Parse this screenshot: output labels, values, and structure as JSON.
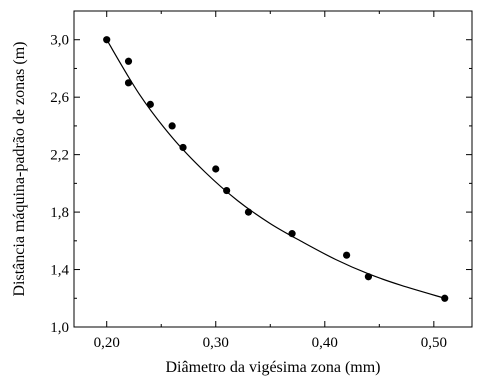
{
  "chart_data": {
    "type": "scatter",
    "xlabel": "Diâmetro da vigésima zona (mm)",
    "ylabel": "Distância máquina-padrão de zonas (m)",
    "xlim": [
      0.17,
      0.535
    ],
    "ylim": [
      1.0,
      3.2
    ],
    "xticks": [
      0.2,
      0.3,
      0.4,
      0.5
    ],
    "xtick_labels": [
      "0,20",
      "0,30",
      "0,40",
      "0,50"
    ],
    "yticks": [
      1.0,
      1.4,
      1.8,
      2.2,
      2.6,
      3.0
    ],
    "ytick_labels": [
      "1,0",
      "1,4",
      "1,8",
      "2,2",
      "2,6",
      "3,0"
    ],
    "grid": false,
    "series": [
      {
        "kind": "points",
        "x": [
          0.2,
          0.22,
          0.22,
          0.24,
          0.26,
          0.27,
          0.3,
          0.31,
          0.33,
          0.37,
          0.42,
          0.44,
          0.51
        ],
        "y": [
          3.0,
          2.85,
          2.7,
          2.55,
          2.4,
          2.25,
          2.1,
          1.95,
          1.8,
          1.65,
          1.5,
          1.35,
          1.2
        ]
      },
      {
        "kind": "fit",
        "x": [
          0.2,
          0.23,
          0.26,
          0.29,
          0.32,
          0.35,
          0.38,
          0.41,
          0.44,
          0.47,
          0.51
        ],
        "y": [
          3.0,
          2.62,
          2.32,
          2.08,
          1.88,
          1.72,
          1.59,
          1.47,
          1.37,
          1.29,
          1.2
        ]
      }
    ]
  }
}
